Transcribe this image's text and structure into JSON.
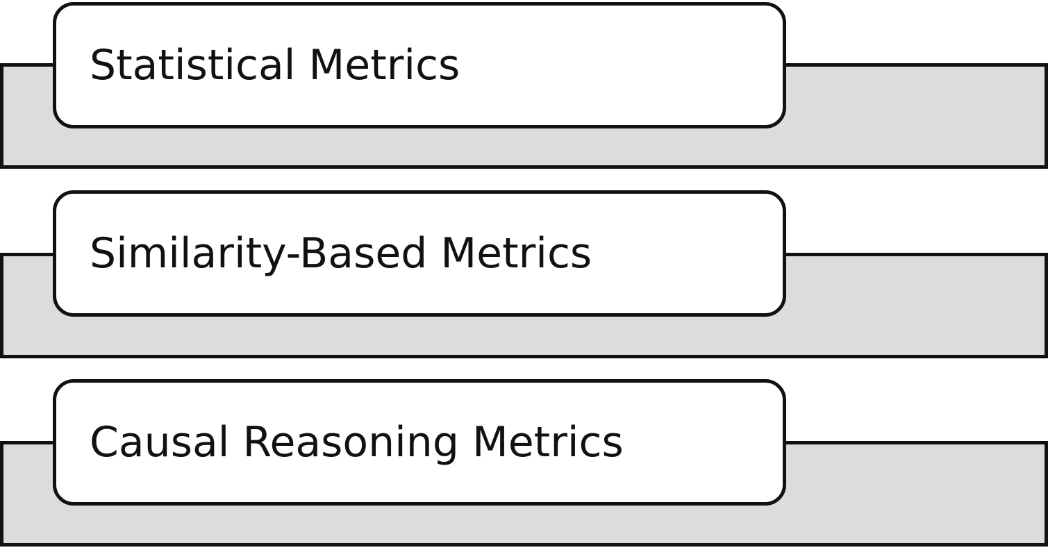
{
  "diagram": {
    "items": [
      {
        "label": "Statistical Metrics"
      },
      {
        "label": "Similarity-Based Metrics"
      },
      {
        "label": "Causal Reasoning Metrics"
      }
    ],
    "colors": {
      "band_fill": "#dcdcdc",
      "card_fill": "#ffffff",
      "outline": "#111111"
    }
  }
}
